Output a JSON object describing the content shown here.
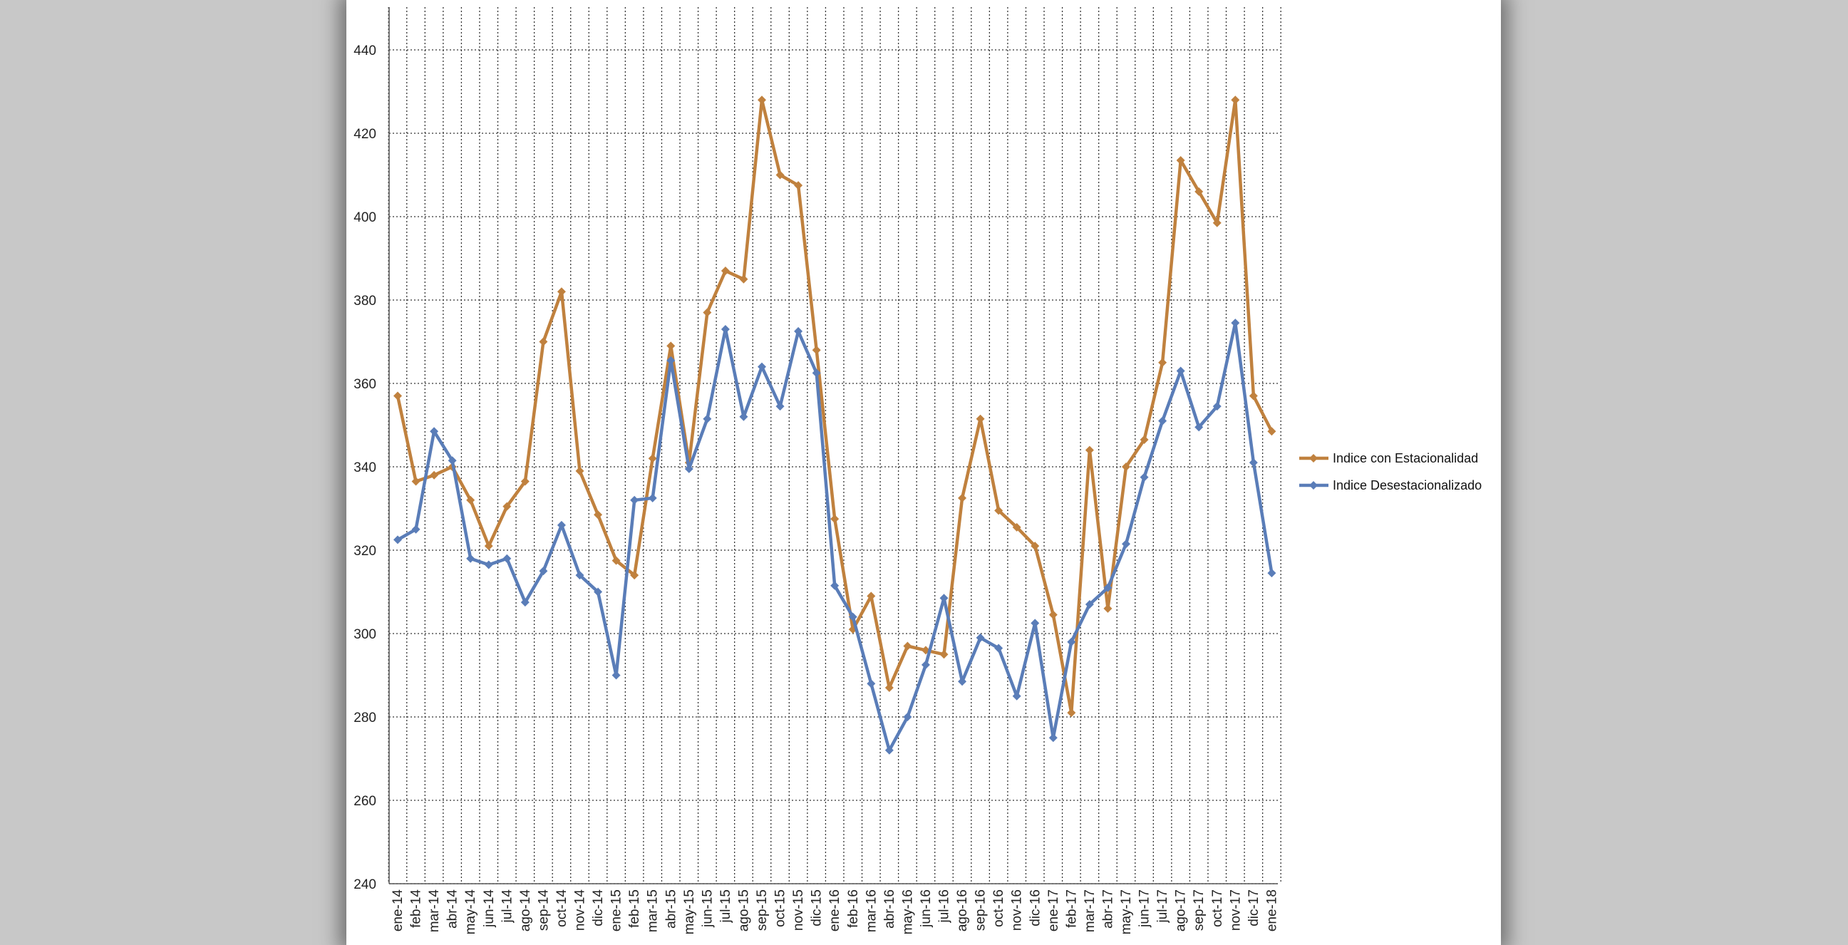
{
  "chart_data": {
    "type": "line",
    "title": "",
    "xlabel": "",
    "ylabel": "",
    "ylim": [
      240,
      440
    ],
    "yticks": [
      240,
      260,
      280,
      300,
      320,
      340,
      360,
      380,
      400,
      420,
      440
    ],
    "grid": true,
    "legend_position": "right",
    "categories": [
      "ene-14",
      "feb-14",
      "mar-14",
      "abr-14",
      "may-14",
      "jun-14",
      "jul-14",
      "ago-14",
      "sep-14",
      "oct-14",
      "nov-14",
      "dic-14",
      "ene-15",
      "feb-15",
      "mar-15",
      "abr-15",
      "may-15",
      "jun-15",
      "jul-15",
      "ago-15",
      "sep-15",
      "oct-15",
      "nov-15",
      "dic-15",
      "ene-16",
      "feb-16",
      "mar-16",
      "abr-16",
      "may-16",
      "jun-16",
      "jul-16",
      "ago-16",
      "sep-16",
      "oct-16",
      "nov-16",
      "dic-16",
      "ene-17",
      "feb-17",
      "mar-17",
      "abr-17",
      "may-17",
      "jun-17",
      "jul-17",
      "ago-17",
      "sep-17",
      "oct-17",
      "nov-17",
      "dic-17",
      "ene-18"
    ],
    "series": [
      {
        "name": "Indice con Estacionalidad",
        "color": "#c0813e",
        "values": [
          357,
          336.5,
          338,
          340,
          332,
          321,
          330.5,
          336.5,
          370,
          382,
          339,
          328.5,
          317.5,
          314,
          342,
          369,
          341,
          377,
          387,
          385,
          428,
          410,
          407.5,
          368,
          327.5,
          301,
          309,
          287,
          297,
          296,
          295,
          332.5,
          351.5,
          329.5,
          325.5,
          321,
          304.5,
          281,
          344,
          306,
          340,
          346.5,
          365,
          413.5,
          406,
          398.5,
          428,
          357,
          348.5
        ]
      },
      {
        "name": "Indice Desestacionalizado",
        "color": "#5a7db8",
        "values": [
          322.5,
          325,
          348.5,
          341.5,
          318,
          316.5,
          318,
          307.5,
          315,
          326,
          314,
          310,
          290,
          332,
          332.5,
          365.5,
          339.5,
          351.5,
          373,
          352,
          364,
          354.5,
          372.5,
          362.5,
          311.5,
          304,
          288,
          272,
          280,
          292.5,
          308.5,
          288.5,
          299,
          296.5,
          285,
          302.5,
          275,
          298,
          307,
          311,
          321.5,
          337.5,
          351,
          363,
          349.5,
          354.5,
          374.5,
          341,
          314.5
        ]
      }
    ]
  }
}
